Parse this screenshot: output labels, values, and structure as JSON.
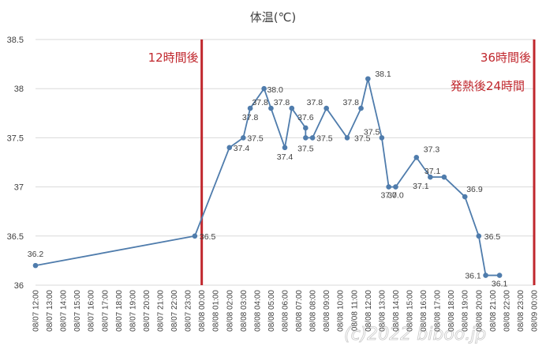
{
  "chart_data": {
    "type": "line",
    "title": "体温(℃)",
    "xlabel": "",
    "ylabel": "",
    "ylim": [
      36,
      38.5
    ],
    "yticks": [
      "36",
      "36.5",
      "37",
      "37.5",
      "38",
      "38.5"
    ],
    "grid": true,
    "legend": "none",
    "line_color": "#4f7cac",
    "marker_color": "#4f7cac",
    "annotation_color": "#c0272d",
    "x_categories": [
      "08/07 12:00",
      "08/07 13:00",
      "08/07 14:00",
      "08/07 15:00",
      "08/07 16:00",
      "08/07 17:00",
      "08/07 18:00",
      "08/07 19:00",
      "08/07 20:00",
      "08/07 21:00",
      "08/07 22:00",
      "08/07 23:00",
      "08/08 00:00",
      "08/08 01:00",
      "08/08 02:00",
      "08/08 03:00",
      "08/08 04:00",
      "08/08 05:00",
      "08/08 06:00",
      "08/08 07:00",
      "08/08 08:00",
      "08/08 09:00",
      "08/08 10:00",
      "08/08 11:00",
      "08/08 12:00",
      "08/08 13:00",
      "08/08 14:00",
      "08/08 15:00",
      "08/08 16:00",
      "08/08 17:00",
      "08/08 18:00",
      "08/08 19:00",
      "08/08 20:00",
      "08/08 21:00",
      "08/08 22:00",
      "08/08 23:00",
      "08/09 00:00"
    ],
    "points": [
      {
        "x": 0.0,
        "y": 36.2,
        "label": "36.2"
      },
      {
        "x": 11.5,
        "y": 36.5,
        "label": "36.5"
      },
      {
        "x": 14.0,
        "y": 37.4,
        "label": "37.4"
      },
      {
        "x": 15.0,
        "y": 37.5,
        "label": "37.5"
      },
      {
        "x": 15.5,
        "y": 37.8,
        "label": "37.8"
      },
      {
        "x": 16.5,
        "y": 38.0,
        "label": "38.0"
      },
      {
        "x": 17.0,
        "y": 37.8,
        "label": "37.8"
      },
      {
        "x": 18.0,
        "y": 37.4,
        "label": "37.4"
      },
      {
        "x": 18.5,
        "y": 37.8,
        "label": "37.8"
      },
      {
        "x": 19.5,
        "y": 37.6,
        "label": "37.6"
      },
      {
        "x": 19.5,
        "y": 37.5,
        "label": "37.5"
      },
      {
        "x": 20.0,
        "y": 37.5,
        "label": "37.5"
      },
      {
        "x": 21.0,
        "y": 37.8,
        "label": "37.8"
      },
      {
        "x": 22.5,
        "y": 37.5,
        "label": "37.5"
      },
      {
        "x": 23.5,
        "y": 37.8,
        "label": "37.8"
      },
      {
        "x": 24.0,
        "y": 38.1,
        "label": "38.1"
      },
      {
        "x": 25.0,
        "y": 37.5,
        "label": "37.5"
      },
      {
        "x": 25.5,
        "y": 37.0,
        "label": "37.0"
      },
      {
        "x": 26.0,
        "y": 37.0,
        "label": "37.0"
      },
      {
        "x": 27.5,
        "y": 37.3,
        "label": "37.3"
      },
      {
        "x": 28.5,
        "y": 37.1,
        "label": "37.1"
      },
      {
        "x": 29.5,
        "y": 37.1,
        "label": "37.1"
      },
      {
        "x": 31.0,
        "y": 36.9,
        "label": "36.9"
      },
      {
        "x": 32.0,
        "y": 36.5,
        "label": "36.5"
      },
      {
        "x": 32.5,
        "y": 36.1,
        "label": "36.1"
      },
      {
        "x": 33.5,
        "y": 36.1,
        "label": "36.1"
      }
    ],
    "vlines": [
      {
        "x": 12.0,
        "label": "12時間後",
        "sublabel": ""
      },
      {
        "x": 36.0,
        "label": "36時間後",
        "sublabel": "発熱後24時間"
      }
    ],
    "watermark": "(c)2022 biboo.jp"
  }
}
